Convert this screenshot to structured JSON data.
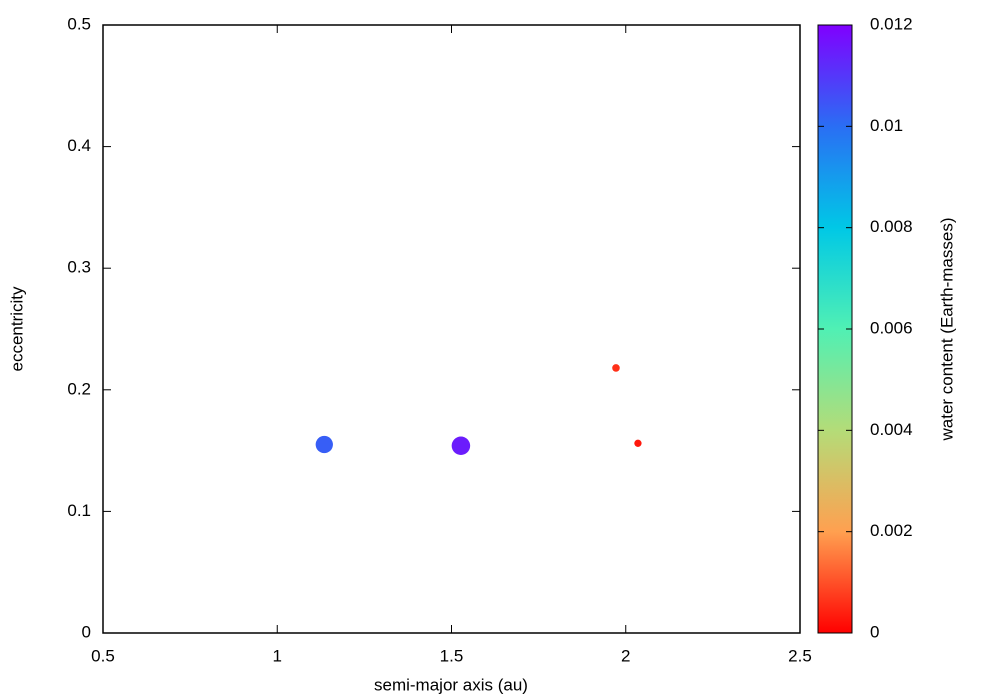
{
  "chart_data": {
    "type": "scatter",
    "x_label": "semi-major axis (au)",
    "y_label": "eccentricity",
    "colorbar_label": "water content (Earth-masses)",
    "x": [
      1.135,
      1.527,
      1.972,
      2.035
    ],
    "values": [
      0.155,
      0.154,
      0.218,
      0.156
    ],
    "color_values": [
      0.0103,
      0.0115,
      0.0006,
      0.0003
    ],
    "colormap": [
      "#ff0000",
      "#ffa050",
      "#b4dc78",
      "#50f0b4",
      "#00c8e6",
      "#2a6ef4",
      "#8000ff"
    ],
    "xlim": [
      0.5,
      2.5
    ],
    "xticks": [
      0.5,
      1,
      1.5,
      2,
      2.5
    ],
    "ylim": [
      0,
      0.5
    ],
    "yticks": [
      0,
      0.1,
      0.2,
      0.3,
      0.4,
      0.5
    ],
    "clim": [
      0,
      0.012
    ],
    "cticks": [
      0,
      0.002,
      0.004,
      0.006,
      0.008,
      0.01,
      0.012
    ],
    "grid": false
  }
}
